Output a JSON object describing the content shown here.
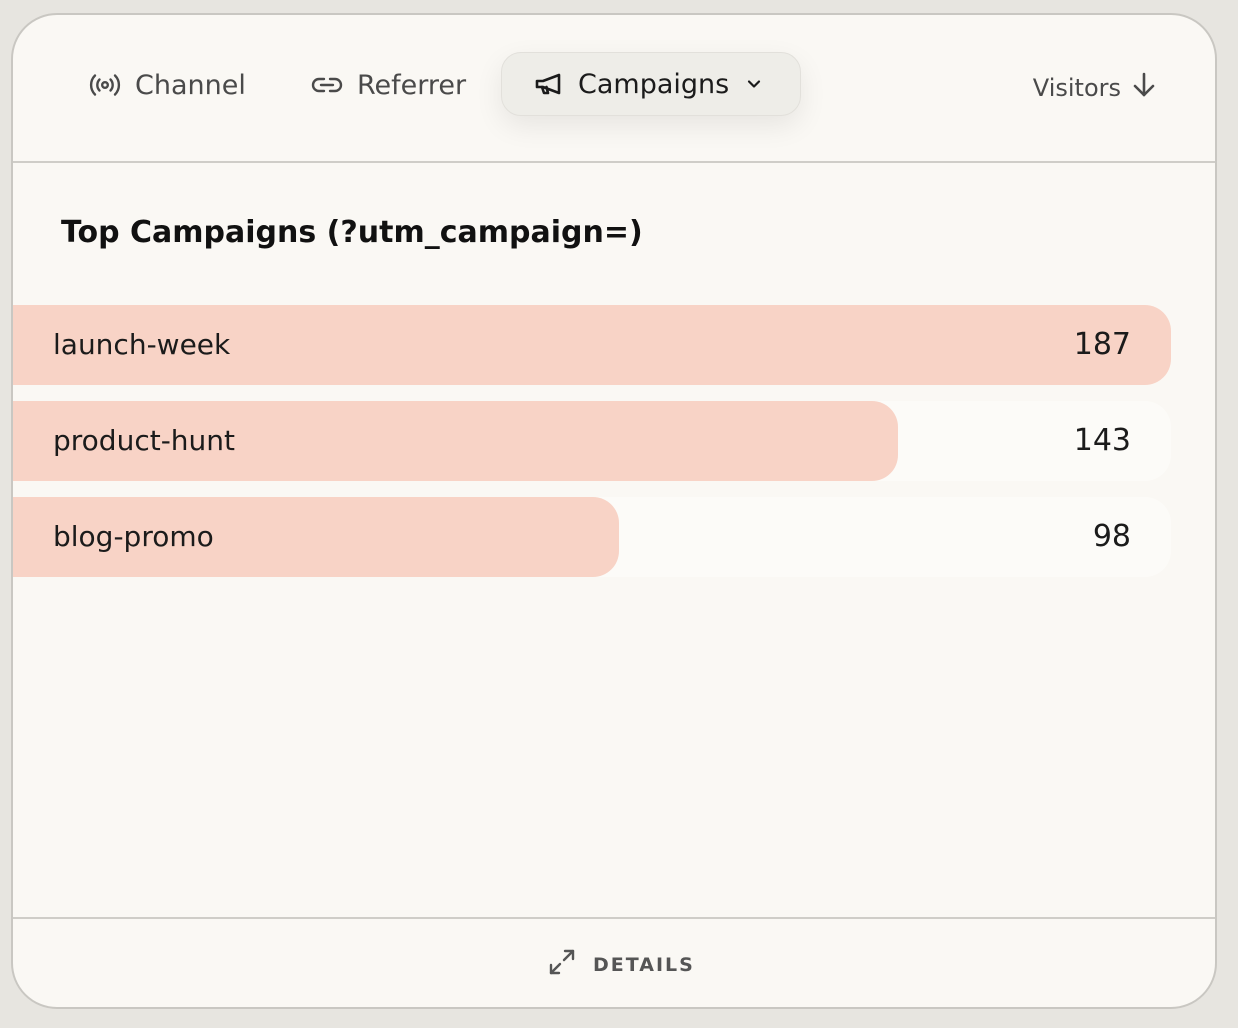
{
  "tabs": [
    {
      "label": "Channel",
      "icon": "broadcast-icon"
    },
    {
      "label": "Referrer",
      "icon": "link-icon"
    },
    {
      "label": "Campaigns",
      "icon": "megaphone-icon",
      "active": true,
      "dropdown_icon": "chevron-down-icon"
    }
  ],
  "sort": {
    "label": "Visitors",
    "icon": "arrow-down-icon"
  },
  "section": {
    "title": "Top Campaigns (?utm_campaign=)"
  },
  "chart_data": {
    "type": "bar",
    "orientation": "horizontal",
    "categories": [
      "launch-week",
      "product-hunt",
      "blog-promo"
    ],
    "values": [
      187,
      143,
      98
    ],
    "ylim": [
      0,
      187
    ]
  },
  "footer": {
    "details_label": "DETAILS",
    "details_icon": "expand-icon"
  },
  "colors": {
    "bar_fill": "#f8d3c6",
    "card_background": "#faf8f4",
    "active_tab_background": "#eeede8"
  }
}
